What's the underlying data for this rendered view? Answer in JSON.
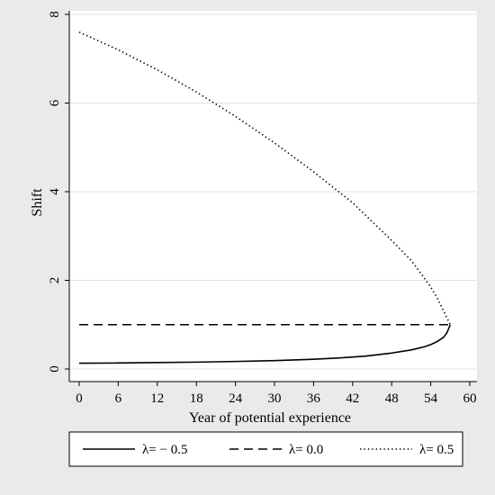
{
  "chart_data": {
    "type": "line",
    "title": "",
    "xlabel": "Year of potential experience",
    "ylabel": "Shift",
    "xlim": [
      0,
      60
    ],
    "ylim": [
      0,
      8
    ],
    "xticks": [
      0,
      6,
      12,
      18,
      24,
      30,
      36,
      42,
      48,
      54,
      60
    ],
    "yticks": [
      0,
      2,
      4,
      6,
      8
    ],
    "grid": true,
    "legend_placement": "bottom",
    "series": [
      {
        "name": "λ= − 0.5",
        "style": "solid",
        "x": [
          0,
          6,
          12,
          18,
          24,
          30,
          36,
          40,
          44,
          48,
          51,
          53,
          54,
          55,
          56,
          56.5,
          57
        ],
        "y": [
          0.13,
          0.135,
          0.145,
          0.155,
          0.17,
          0.19,
          0.22,
          0.25,
          0.29,
          0.36,
          0.43,
          0.5,
          0.55,
          0.62,
          0.72,
          0.82,
          1.0
        ]
      },
      {
        "name": "λ= 0.0",
        "style": "dashed",
        "x": [
          0,
          57
        ],
        "y": [
          1.0,
          1.0
        ]
      },
      {
        "name": "λ= 0.5",
        "style": "dotted",
        "x": [
          0,
          6,
          12,
          18,
          24,
          30,
          36,
          42,
          48,
          51,
          54,
          55,
          56,
          56.5,
          57
        ],
        "y": [
          7.6,
          7.2,
          6.75,
          6.25,
          5.7,
          5.1,
          4.45,
          3.75,
          2.9,
          2.45,
          1.85,
          1.6,
          1.3,
          1.15,
          1.0
        ]
      }
    ]
  }
}
